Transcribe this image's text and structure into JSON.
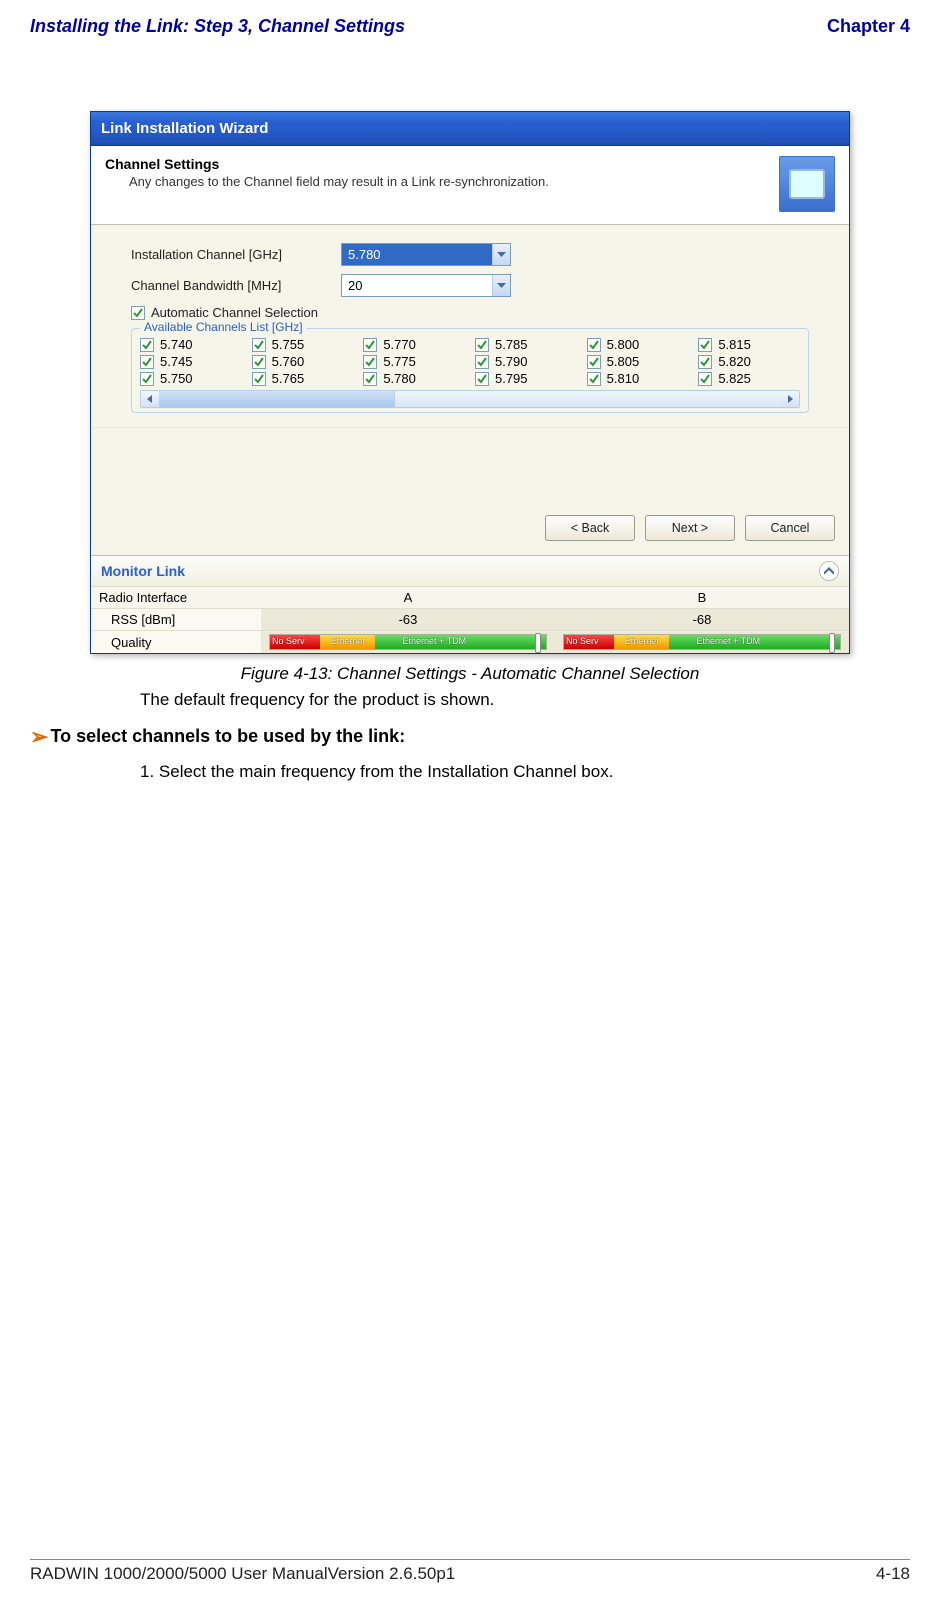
{
  "page_header": {
    "left": "Installing the Link: Step 3, Channel Settings",
    "right": "Chapter 4"
  },
  "page_footer": {
    "left": "RADWIN 1000/2000/5000 User ManualVersion  2.6.50p1",
    "right": "4-18"
  },
  "wizard": {
    "titlebar": "Link Installation Wizard",
    "heading": "Channel Settings",
    "subheading": "Any changes to the Channel field may result in a Link re-synchronization.",
    "rows": {
      "install_channel": {
        "label": "Installation Channel [GHz]",
        "value": "5.780",
        "selected_bg": "#316ac5",
        "selected_fg": "#ffffff"
      },
      "bandwidth": {
        "label": "Channel Bandwidth [MHz]",
        "value": "20"
      }
    },
    "auto_sel": {
      "checked": true,
      "label": "Automatic Channel Selection"
    },
    "fieldset_legend": "Available Channels List [GHz]",
    "channels": [
      {
        "v": "5.740",
        "c": true
      },
      {
        "v": "5.755",
        "c": true
      },
      {
        "v": "5.770",
        "c": true
      },
      {
        "v": "5.785",
        "c": true
      },
      {
        "v": "5.800",
        "c": true
      },
      {
        "v": "5.815",
        "c": true
      },
      {
        "v": "5.745",
        "c": true
      },
      {
        "v": "5.760",
        "c": true
      },
      {
        "v": "5.775",
        "c": true
      },
      {
        "v": "5.790",
        "c": true
      },
      {
        "v": "5.805",
        "c": true
      },
      {
        "v": "5.820",
        "c": true
      },
      {
        "v": "5.750",
        "c": true
      },
      {
        "v": "5.765",
        "c": true
      },
      {
        "v": "5.780",
        "c": true
      },
      {
        "v": "5.795",
        "c": true
      },
      {
        "v": "5.810",
        "c": true
      },
      {
        "v": "5.825",
        "c": true
      }
    ],
    "buttons": {
      "back": "< Back",
      "next": "Next >",
      "cancel": "Cancel"
    },
    "monitor": {
      "title": "Monitor Link",
      "col_a": "A",
      "col_b": "B",
      "row1_label": "Radio Interface",
      "row2_label": "RSS [dBm]",
      "rss_a": "-63",
      "rss_b": "-68",
      "row3_label": "Quality",
      "quality_labels": {
        "no_serv": "No Serv",
        "ethernet": "Ethernet",
        "eth_tdm": "Ethernet + TDM"
      },
      "quality_colors": {
        "red": "#cc0000",
        "yellow": "#ee9900",
        "green": "#22aa22"
      },
      "marker_a_pct": 96,
      "marker_b_pct": 96
    }
  },
  "caption": "Figure 4-13: Channel Settings - Automatic Channel Selection",
  "body1": "The default frequency for the product is shown.",
  "proc_head": "To select channels to be used by the link:",
  "step1": "1. Select the main frequency from the Installation Channel box.",
  "colors": {
    "header_blue": "#0000a0",
    "arrow_orange": "#e06a00",
    "titlebar_gradient_top": "#3a79e0",
    "titlebar_gradient_bottom": "#1e4eb0",
    "panel_bg": "#f6f5ea",
    "fieldset_border": "#c0d4eb",
    "legend_color": "#2a5fd0"
  }
}
